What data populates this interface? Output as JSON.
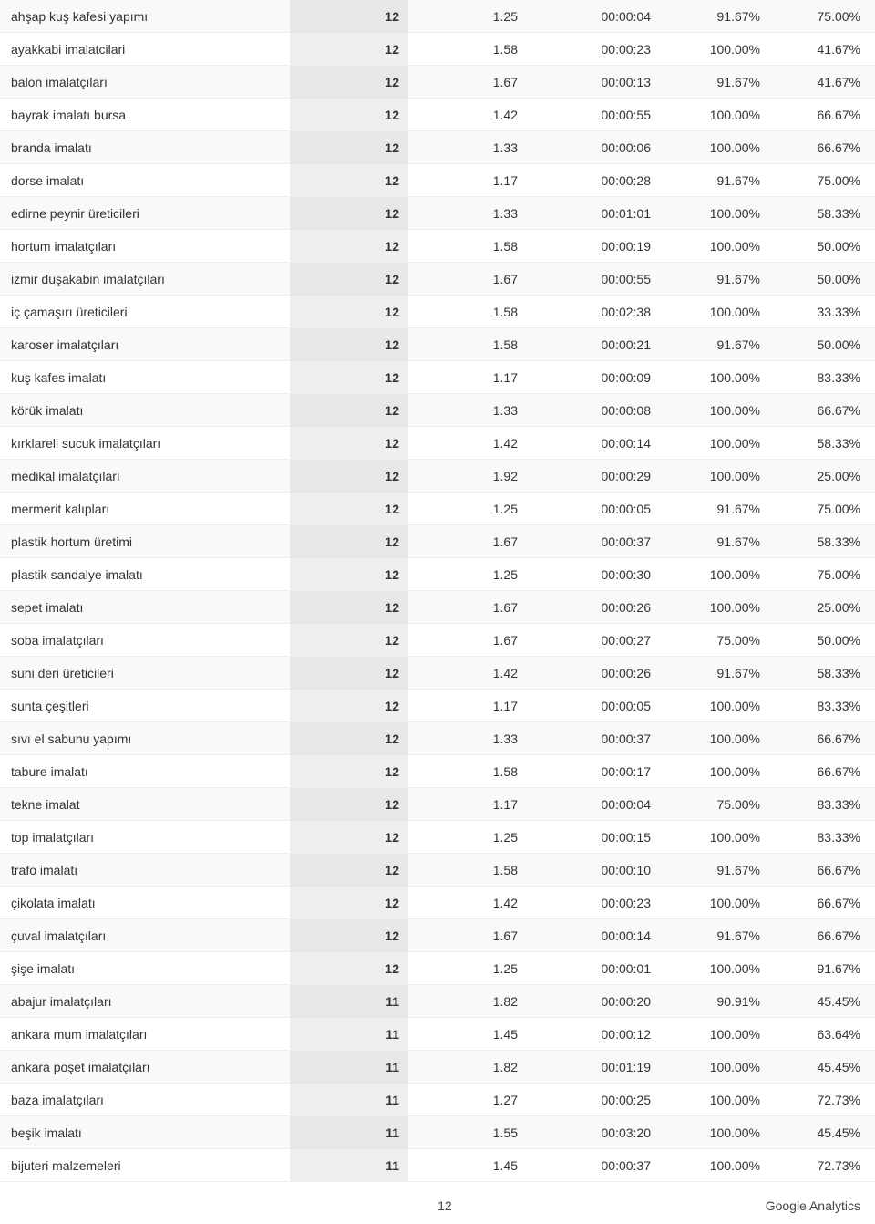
{
  "table": {
    "rows": [
      {
        "keyword": "ahşap kuş kafesi yapımı",
        "visits": "12",
        "pages": "1.25",
        "duration": "00:00:04",
        "new": "91.67%",
        "bounce": "75.00%"
      },
      {
        "keyword": "ayakkabi imalatcilari",
        "visits": "12",
        "pages": "1.58",
        "duration": "00:00:23",
        "new": "100.00%",
        "bounce": "41.67%"
      },
      {
        "keyword": "balon imalatçıları",
        "visits": "12",
        "pages": "1.67",
        "duration": "00:00:13",
        "new": "91.67%",
        "bounce": "41.67%"
      },
      {
        "keyword": "bayrak imalatı bursa",
        "visits": "12",
        "pages": "1.42",
        "duration": "00:00:55",
        "new": "100.00%",
        "bounce": "66.67%"
      },
      {
        "keyword": "branda imalatı",
        "visits": "12",
        "pages": "1.33",
        "duration": "00:00:06",
        "new": "100.00%",
        "bounce": "66.67%"
      },
      {
        "keyword": "dorse imalatı",
        "visits": "12",
        "pages": "1.17",
        "duration": "00:00:28",
        "new": "91.67%",
        "bounce": "75.00%"
      },
      {
        "keyword": "edirne peynir üreticileri",
        "visits": "12",
        "pages": "1.33",
        "duration": "00:01:01",
        "new": "100.00%",
        "bounce": "58.33%"
      },
      {
        "keyword": "hortum imalatçıları",
        "visits": "12",
        "pages": "1.58",
        "duration": "00:00:19",
        "new": "100.00%",
        "bounce": "50.00%"
      },
      {
        "keyword": "izmir duşakabin imalatçıları",
        "visits": "12",
        "pages": "1.67",
        "duration": "00:00:55",
        "new": "91.67%",
        "bounce": "50.00%"
      },
      {
        "keyword": "iç çamaşırı üreticileri",
        "visits": "12",
        "pages": "1.58",
        "duration": "00:02:38",
        "new": "100.00%",
        "bounce": "33.33%"
      },
      {
        "keyword": "karoser imalatçıları",
        "visits": "12",
        "pages": "1.58",
        "duration": "00:00:21",
        "new": "91.67%",
        "bounce": "50.00%"
      },
      {
        "keyword": "kuş kafes imalatı",
        "visits": "12",
        "pages": "1.17",
        "duration": "00:00:09",
        "new": "100.00%",
        "bounce": "83.33%"
      },
      {
        "keyword": "körük imalatı",
        "visits": "12",
        "pages": "1.33",
        "duration": "00:00:08",
        "new": "100.00%",
        "bounce": "66.67%"
      },
      {
        "keyword": "kırklareli sucuk imalatçıları",
        "visits": "12",
        "pages": "1.42",
        "duration": "00:00:14",
        "new": "100.00%",
        "bounce": "58.33%"
      },
      {
        "keyword": "medikal imalatçıları",
        "visits": "12",
        "pages": "1.92",
        "duration": "00:00:29",
        "new": "100.00%",
        "bounce": "25.00%"
      },
      {
        "keyword": "mermerit kalıpları",
        "visits": "12",
        "pages": "1.25",
        "duration": "00:00:05",
        "new": "91.67%",
        "bounce": "75.00%"
      },
      {
        "keyword": "plastik hortum üretimi",
        "visits": "12",
        "pages": "1.67",
        "duration": "00:00:37",
        "new": "91.67%",
        "bounce": "58.33%"
      },
      {
        "keyword": "plastik sandalye imalatı",
        "visits": "12",
        "pages": "1.25",
        "duration": "00:00:30",
        "new": "100.00%",
        "bounce": "75.00%"
      },
      {
        "keyword": "sepet imalatı",
        "visits": "12",
        "pages": "1.67",
        "duration": "00:00:26",
        "new": "100.00%",
        "bounce": "25.00%"
      },
      {
        "keyword": "soba imalatçıları",
        "visits": "12",
        "pages": "1.67",
        "duration": "00:00:27",
        "new": "75.00%",
        "bounce": "50.00%"
      },
      {
        "keyword": "suni deri üreticileri",
        "visits": "12",
        "pages": "1.42",
        "duration": "00:00:26",
        "new": "91.67%",
        "bounce": "58.33%"
      },
      {
        "keyword": "sunta çeşitleri",
        "visits": "12",
        "pages": "1.17",
        "duration": "00:00:05",
        "new": "100.00%",
        "bounce": "83.33%"
      },
      {
        "keyword": "sıvı el sabunu yapımı",
        "visits": "12",
        "pages": "1.33",
        "duration": "00:00:37",
        "new": "100.00%",
        "bounce": "66.67%"
      },
      {
        "keyword": "tabure imalatı",
        "visits": "12",
        "pages": "1.58",
        "duration": "00:00:17",
        "new": "100.00%",
        "bounce": "66.67%"
      },
      {
        "keyword": "tekne imalat",
        "visits": "12",
        "pages": "1.17",
        "duration": "00:00:04",
        "new": "75.00%",
        "bounce": "83.33%"
      },
      {
        "keyword": "top imalatçıları",
        "visits": "12",
        "pages": "1.25",
        "duration": "00:00:15",
        "new": "100.00%",
        "bounce": "83.33%"
      },
      {
        "keyword": "trafo imalatı",
        "visits": "12",
        "pages": "1.58",
        "duration": "00:00:10",
        "new": "91.67%",
        "bounce": "66.67%"
      },
      {
        "keyword": "çikolata imalatı",
        "visits": "12",
        "pages": "1.42",
        "duration": "00:00:23",
        "new": "100.00%",
        "bounce": "66.67%"
      },
      {
        "keyword": "çuval imalatçıları",
        "visits": "12",
        "pages": "1.67",
        "duration": "00:00:14",
        "new": "91.67%",
        "bounce": "66.67%"
      },
      {
        "keyword": "şişe imalatı",
        "visits": "12",
        "pages": "1.25",
        "duration": "00:00:01",
        "new": "100.00%",
        "bounce": "91.67%"
      },
      {
        "keyword": "abajur imalatçıları",
        "visits": "11",
        "pages": "1.82",
        "duration": "00:00:20",
        "new": "90.91%",
        "bounce": "45.45%"
      },
      {
        "keyword": "ankara mum imalatçıları",
        "visits": "11",
        "pages": "1.45",
        "duration": "00:00:12",
        "new": "100.00%",
        "bounce": "63.64%"
      },
      {
        "keyword": "ankara poşet imalatçıları",
        "visits": "11",
        "pages": "1.82",
        "duration": "00:01:19",
        "new": "100.00%",
        "bounce": "45.45%"
      },
      {
        "keyword": "baza imalatçıları",
        "visits": "11",
        "pages": "1.27",
        "duration": "00:00:25",
        "new": "100.00%",
        "bounce": "72.73%"
      },
      {
        "keyword": "beşik imalatı",
        "visits": "11",
        "pages": "1.55",
        "duration": "00:03:20",
        "new": "100.00%",
        "bounce": "45.45%"
      },
      {
        "keyword": "bijuteri malzemeleri",
        "visits": "11",
        "pages": "1.45",
        "duration": "00:00:37",
        "new": "100.00%",
        "bounce": "72.73%"
      }
    ]
  },
  "footer": {
    "page": "12",
    "brand": "Google Analytics"
  }
}
